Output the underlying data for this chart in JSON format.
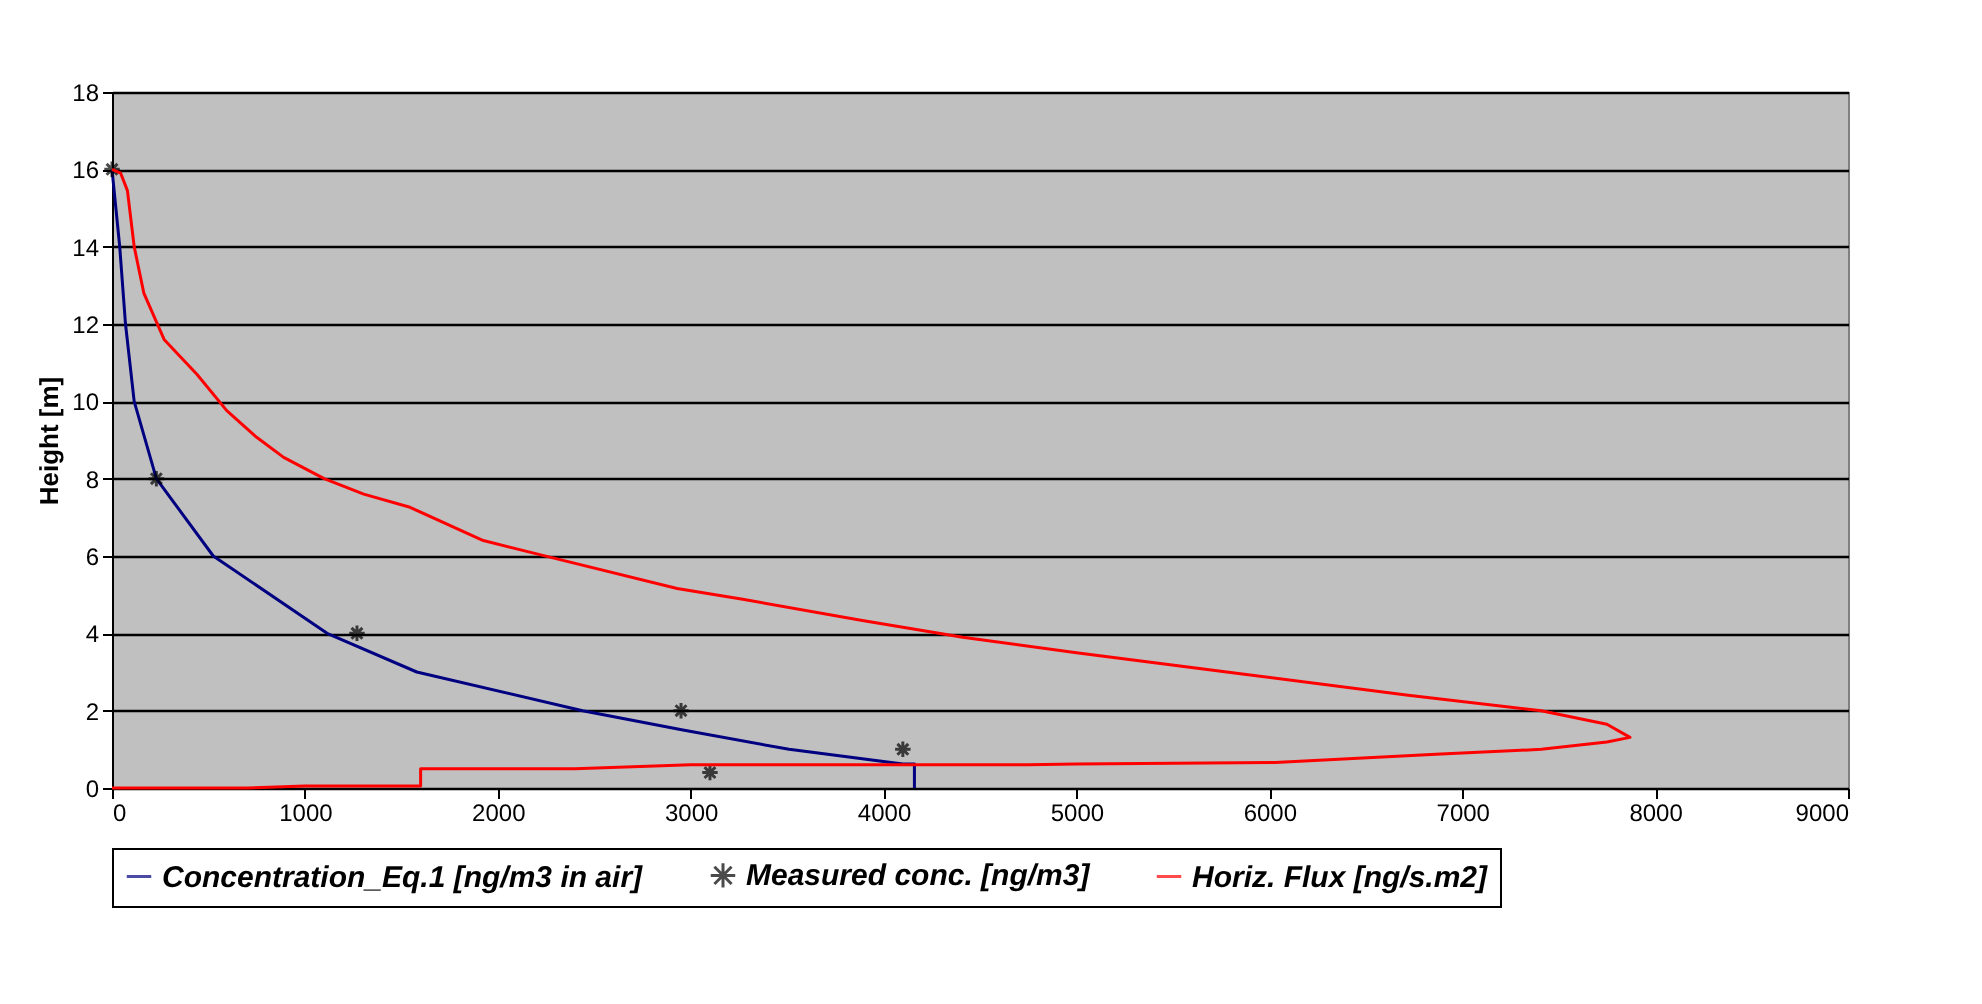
{
  "chart_data": {
    "type": "line",
    "ylabel": "Height [m]",
    "xlim": [
      0,
      9000
    ],
    "xticks": [
      0,
      1000,
      2000,
      3000,
      4000,
      5000,
      6000,
      7000,
      8000,
      9000
    ],
    "ylim": [
      0,
      18
    ],
    "yticks": [
      0,
      2,
      4,
      6,
      8,
      10,
      12,
      14,
      16,
      18
    ],
    "grid": "y",
    "legend": "bottom",
    "series": [
      {
        "name": "Concentration_Eq.1 [ng/m3 in air]",
        "color": "#000080",
        "x": [
          0,
          20,
          40,
          70,
          115,
          230,
          525,
          1115,
          1580,
          2440,
          2960,
          3510,
          4100,
          4160,
          4160
        ],
        "values": [
          16,
          15,
          14,
          12,
          10,
          8,
          6,
          4,
          3,
          2,
          1.5,
          1,
          0.62,
          0.62,
          0
        ]
      },
      {
        "name": "Measured conc. [ng/m3]",
        "color": "#000000",
        "type": "scatter",
        "marker": "cross",
        "x": [
          0,
          230,
          1270,
          2950,
          3100,
          4100
        ],
        "values": [
          16,
          8,
          4,
          2,
          0.4,
          1
        ]
      },
      {
        "name": "Horiz. Flux [ng/s.m2]",
        "color": "#ff0000",
        "x": [
          0,
          700,
          1000,
          1600,
          1600,
          2400,
          3000,
          4750,
          5000,
          6030,
          6890,
          7410,
          7750,
          7870,
          7750,
          7410,
          6720,
          5860,
          5000,
          4410,
          4310,
          3890,
          3270,
          2930,
          2270,
          1925,
          1545,
          1305,
          1100,
          890,
          750,
          595,
          440,
          270,
          165,
          115,
          80,
          45,
          0
        ],
        "values": [
          0,
          0,
          0.05,
          0.05,
          0.5,
          0.5,
          0.6,
          0.6,
          0.62,
          0.66,
          0.88,
          1.0,
          1.19,
          1.31,
          1.65,
          2.0,
          2.4,
          2.95,
          3.5,
          3.9,
          3.98,
          4.33,
          4.88,
          5.16,
          5.97,
          6.4,
          7.26,
          7.6,
          8.0,
          8.55,
          9.07,
          9.76,
          10.7,
          11.6,
          12.8,
          14.0,
          15.45,
          15.9,
          16
        ]
      }
    ]
  }
}
